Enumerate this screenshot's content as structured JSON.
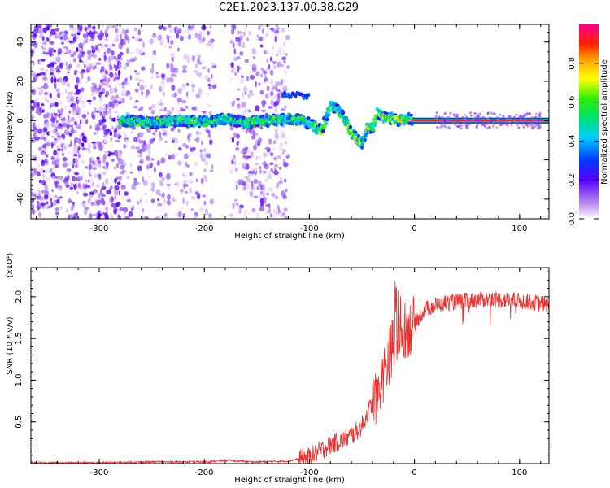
{
  "title": "C2E1.2023.137.00.38.G29",
  "chart_data": [
    {
      "type": "heatmap",
      "xlabel": "Height of straight line (km)",
      "ylabel": "Frequency (Hz)",
      "xlim": [
        -365,
        128
      ],
      "ylim": [
        -50,
        49
      ],
      "xticks": [
        -300,
        -200,
        -100,
        0,
        100
      ],
      "yticks": [
        -40,
        -20,
        0,
        20,
        40
      ],
      "colorbar": {
        "label": "Normalized spectral amplitude",
        "range": [
          0,
          1
        ],
        "ticks": [
          "0.0",
          "0.2",
          "0.4",
          "0.6",
          "0.8"
        ]
      },
      "ridge": {
        "x": [
          -280,
          -250,
          -220,
          -200,
          -180,
          -160,
          -140,
          -120,
          -105,
          -95,
          -88,
          -80,
          -70,
          -60,
          -50,
          -45,
          -40,
          -35,
          -30,
          -25,
          -20,
          -15,
          -10,
          -5,
          0,
          10,
          50,
          100,
          128
        ],
        "y": [
          0,
          -1,
          0,
          -1,
          1,
          -1,
          0,
          1,
          0,
          -3,
          -5,
          8,
          4,
          -6,
          -12,
          -4,
          -3,
          4,
          2,
          1,
          1,
          0,
          0,
          1,
          0,
          0,
          0,
          0,
          0
        ]
      },
      "grid": false,
      "colormap": "rainbow (white to purple to blue to cyan to green to yellow to red to magenta)"
    },
    {
      "type": "line",
      "xlabel": "Height of straight line (km)",
      "ylabel": "SNR (10 * v/v)",
      "yscale_label": "(x10⁴)",
      "xlim": [
        -365,
        128
      ],
      "ylim": [
        0,
        2.35
      ],
      "xticks": [
        -300,
        -200,
        -100,
        0,
        100
      ],
      "yticks": [
        0.5,
        1.0,
        1.5,
        2.0
      ],
      "ytick_labels": [
        "0.5",
        "1.0",
        "1.5",
        "2.0"
      ],
      "series": [
        {
          "color": "#e8312f",
          "x": [
            -365,
            -300,
            -250,
            -200,
            -180,
            -150,
            -120,
            -100,
            -90,
            -80,
            -70,
            -60,
            -50,
            -45,
            -40,
            -35,
            -30,
            -25,
            -20,
            -15,
            -10,
            -5,
            0,
            10,
            20,
            30,
            50,
            70,
            90,
            110,
            128
          ],
          "y": [
            0.01,
            0.01,
            0.02,
            0.02,
            0.04,
            0.02,
            0.03,
            0.08,
            0.15,
            0.22,
            0.28,
            0.33,
            0.45,
            0.6,
            0.72,
            0.85,
            1.05,
            1.25,
            1.45,
            1.55,
            1.6,
            1.62,
            1.68,
            1.85,
            1.9,
            1.93,
            1.95,
            1.97,
            1.96,
            1.94,
            1.9
          ]
        }
      ],
      "grid": false
    }
  ]
}
